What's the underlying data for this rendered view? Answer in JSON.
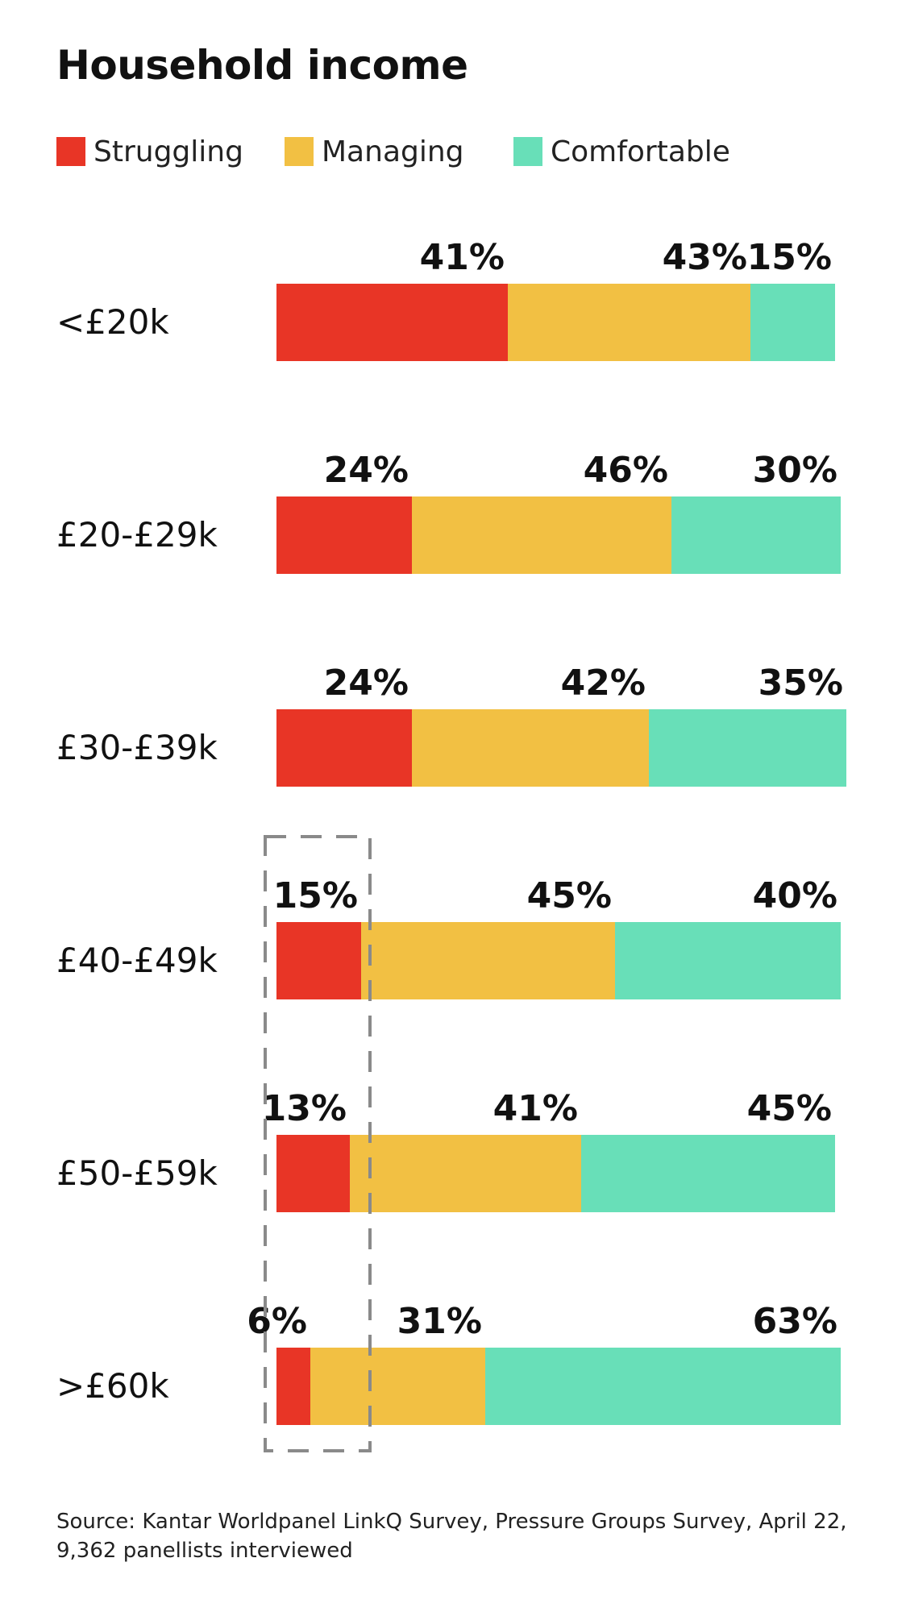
{
  "chart_data": {
    "type": "bar",
    "orientation": "horizontal",
    "stacked": true,
    "title": "Household income",
    "categories": [
      "<£20k",
      "£20-£29k",
      "£30-£39k",
      "£40-£49k",
      "£50-£59k",
      ">£60k"
    ],
    "series": [
      {
        "name": "Struggling",
        "color": "#e83526",
        "values": [
          41,
          24,
          24,
          15,
          13,
          6
        ]
      },
      {
        "name": "Managing",
        "color": "#f2c043",
        "values": [
          43,
          46,
          42,
          45,
          41,
          31
        ]
      },
      {
        "name": "Comfortable",
        "color": "#68dfb8",
        "values": [
          15,
          30,
          35,
          40,
          45,
          63
        ]
      }
    ],
    "value_suffix": "%",
    "legend_position": "top-left",
    "highlight": "dashed box around Struggling segments of £40-£49k, £50-£59k and >£60k",
    "source": [
      "Source: Kantar Worldpanel LinkQ Survey, Pressure Groups Survey, April 22,",
      "9,362 panellists interviewed"
    ]
  }
}
